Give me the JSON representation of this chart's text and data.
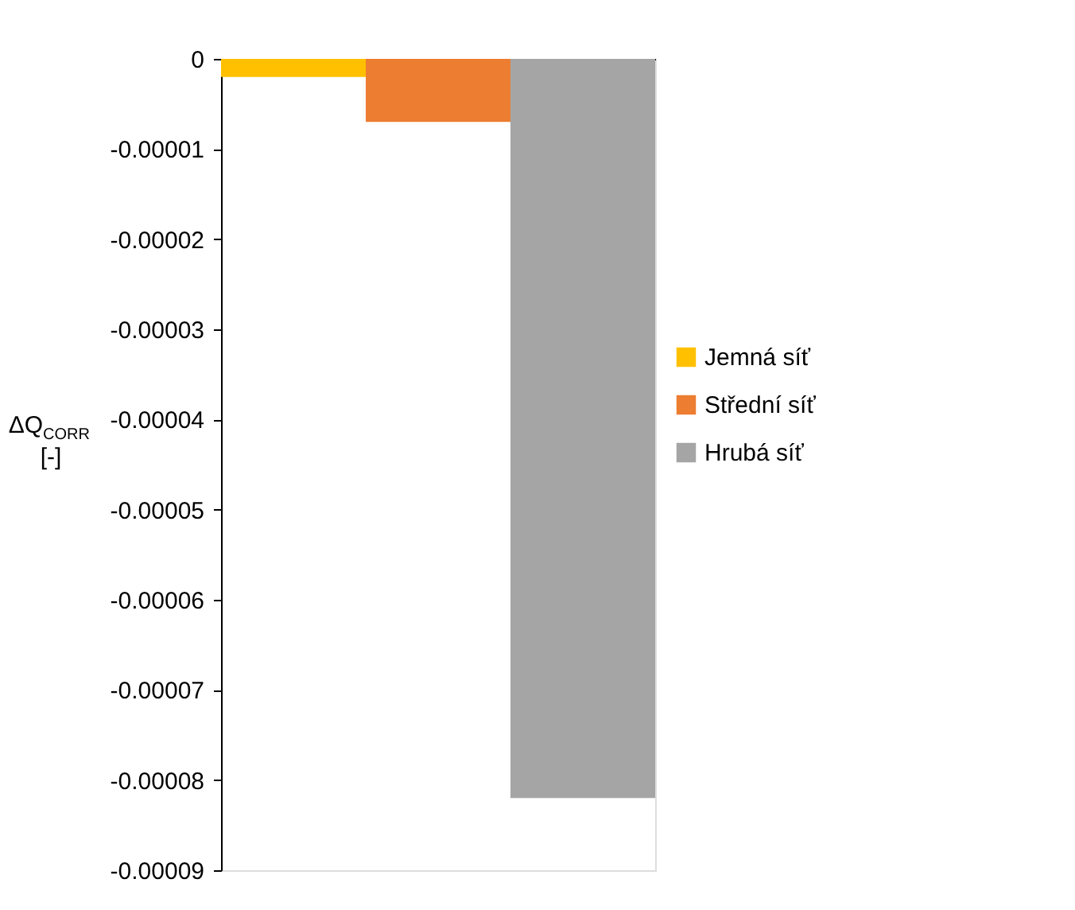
{
  "chart_data": {
    "type": "bar",
    "ylabel": "ΔQ$_{CORR}$ [-]",
    "categories": [
      null
    ],
    "series": [
      {
        "name": "Jemná síť",
        "color": "#ffc000",
        "values": [
          -2e-06
        ]
      },
      {
        "name": "Střední síť",
        "color": "#ed7d31",
        "values": [
          -7e-06
        ]
      },
      {
        "name": "Hrubá síť",
        "color": "#a5a5a5",
        "values": [
          -8.2e-05
        ]
      }
    ],
    "ylim": [
      -9e-05,
      0
    ],
    "yticks": [
      0,
      {
        "value": -1e-05,
        "label": "-0.00001"
      },
      {
        "value": -2e-05,
        "label": "-0.00002"
      },
      {
        "value": -3e-05,
        "label": "-0.00003"
      },
      {
        "value": -4e-05,
        "label": "-0.00004"
      },
      {
        "value": -5e-05,
        "label": "-0.00005"
      },
      {
        "value": -6e-05,
        "label": "-0.00006"
      },
      {
        "value": -7e-05,
        "label": "-0.00007"
      },
      {
        "value": -8e-05,
        "label": "-0.00008"
      },
      {
        "value": -9e-05,
        "label": "-0.00009"
      }
    ],
    "grid": false,
    "legend": "right"
  }
}
